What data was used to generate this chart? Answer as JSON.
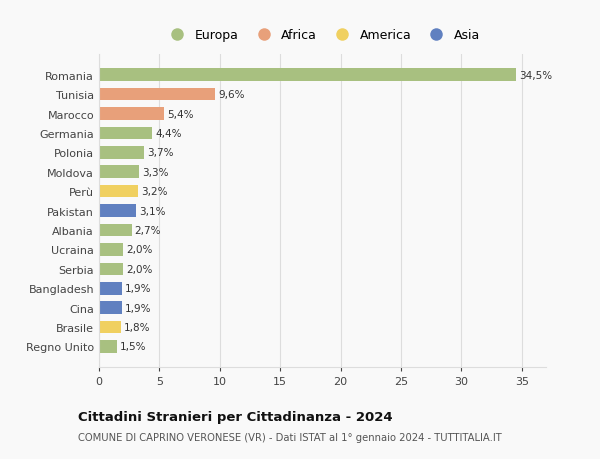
{
  "countries": [
    "Romania",
    "Tunisia",
    "Marocco",
    "Germania",
    "Polonia",
    "Moldova",
    "Perù",
    "Pakistan",
    "Albania",
    "Ucraina",
    "Serbia",
    "Bangladesh",
    "Cina",
    "Brasile",
    "Regno Unito"
  ],
  "values": [
    34.5,
    9.6,
    5.4,
    4.4,
    3.7,
    3.3,
    3.2,
    3.1,
    2.7,
    2.0,
    2.0,
    1.9,
    1.9,
    1.8,
    1.5
  ],
  "labels": [
    "34,5%",
    "9,6%",
    "5,4%",
    "4,4%",
    "3,7%",
    "3,3%",
    "3,2%",
    "3,1%",
    "2,7%",
    "2,0%",
    "2,0%",
    "1,9%",
    "1,9%",
    "1,8%",
    "1,5%"
  ],
  "continents": [
    "Europa",
    "Africa",
    "Africa",
    "Europa",
    "Europa",
    "Europa",
    "America",
    "Asia",
    "Europa",
    "Europa",
    "Europa",
    "Asia",
    "Asia",
    "America",
    "Europa"
  ],
  "continent_colors": {
    "Europa": "#a8c080",
    "Africa": "#e8a07a",
    "America": "#f0d060",
    "Asia": "#6080c0"
  },
  "legend_order": [
    "Europa",
    "Africa",
    "America",
    "Asia"
  ],
  "title": "Cittadini Stranieri per Cittadinanza - 2024",
  "subtitle": "COMUNE DI CAPRINO VERONESE (VR) - Dati ISTAT al 1° gennaio 2024 - TUTTITALIA.IT",
  "xlim": [
    0,
    37
  ],
  "xticks": [
    0,
    5,
    10,
    15,
    20,
    25,
    30,
    35
  ],
  "background_color": "#f9f9f9",
  "grid_color": "#dddddd"
}
